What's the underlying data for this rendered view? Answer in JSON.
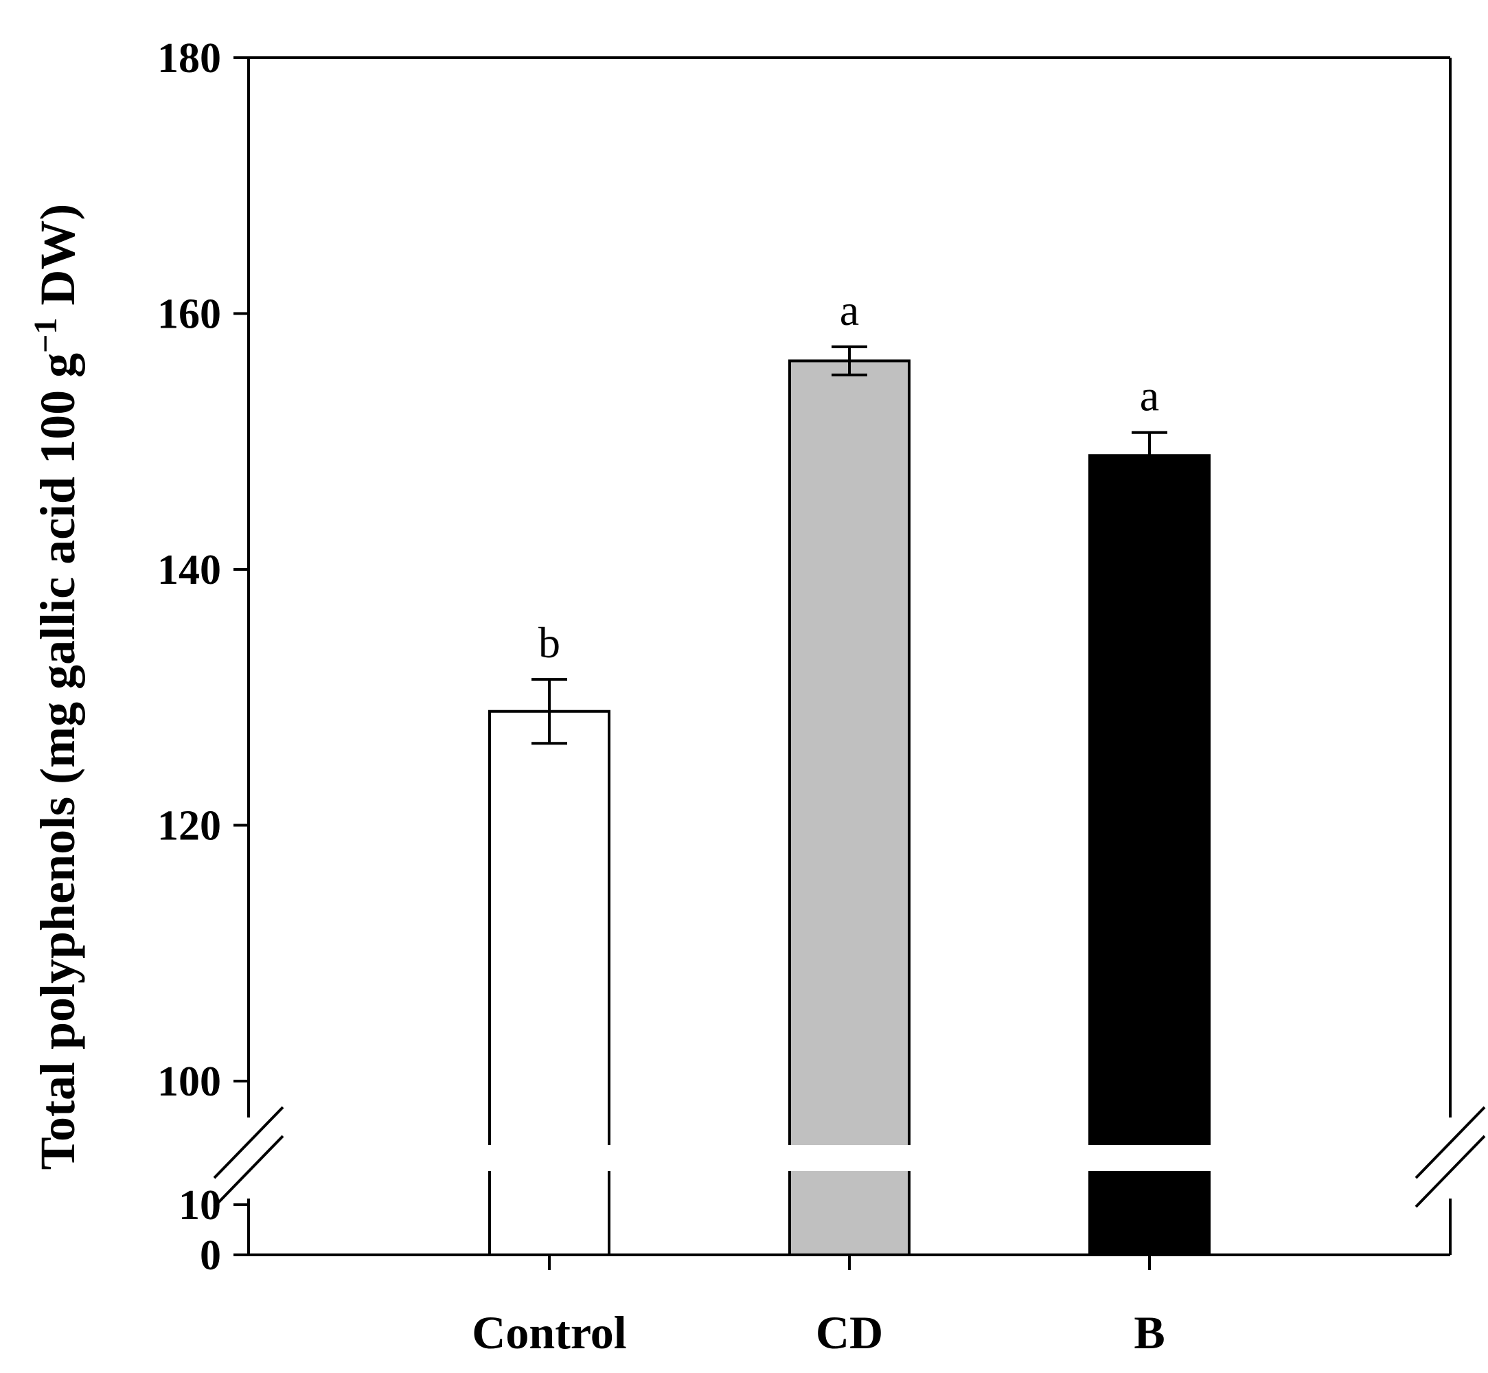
{
  "chart_data": {
    "type": "bar",
    "title": "",
    "xlabel": "",
    "ylabel": {
      "main": "Total polyphenols (mg gallic acid 100 g",
      "superscript": "−1",
      "suffix": " DW)"
    },
    "categories": [
      "Control",
      "CD",
      "B"
    ],
    "values": [
      128.9,
      156.3,
      148.9
    ],
    "errors": [
      2.5,
      1.1,
      1.8
    ],
    "significance": [
      "b",
      "a",
      "a"
    ],
    "colors": [
      "#ffffff",
      "#c0c0c0",
      "#000000"
    ],
    "axis_break": {
      "lower_range": [
        0,
        10
      ],
      "upper_range": [
        95,
        180
      ]
    },
    "yticks_upper": [
      100,
      120,
      140,
      160,
      180
    ],
    "yticks_lower": [
      0,
      10
    ],
    "ytick_labels_upper": [
      "100",
      "120",
      "140",
      "160",
      "180"
    ],
    "ytick_labels_lower": [
      "0",
      "10"
    ],
    "grid": false,
    "legend": "none"
  }
}
